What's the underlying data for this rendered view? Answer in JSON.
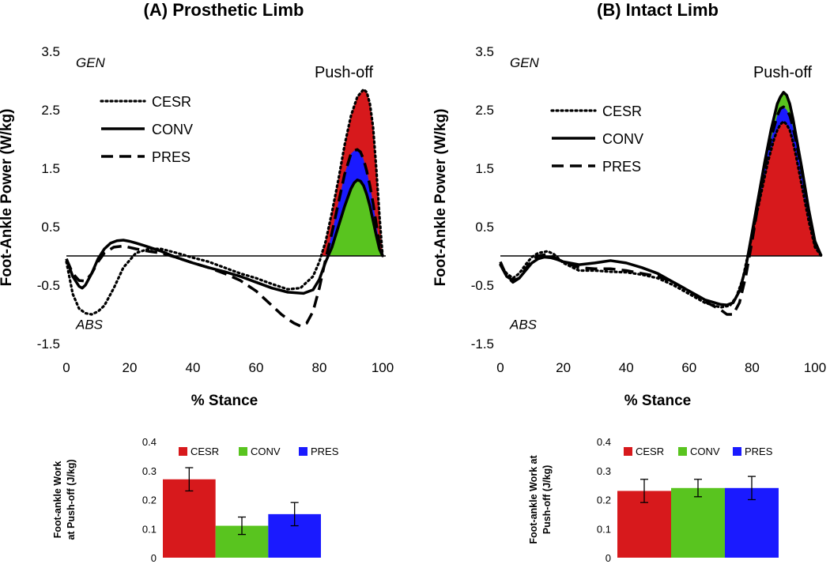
{
  "chart_data": [
    {
      "type": "line",
      "title": "(A) Prosthetic Limb",
      "ylabel": "Foot-Ankle Power (W/kg)",
      "xlabel": "% Stance",
      "xlim": [
        0,
        100
      ],
      "ylim": [
        -1.5,
        3.5
      ],
      "xticks": [
        "0",
        "20",
        "40",
        "60",
        "80",
        "100"
      ],
      "yticks": [
        "3.5",
        "2.5",
        "1.5",
        "0.5",
        "-0.5",
        "-1.5"
      ],
      "annotations": {
        "gen": "GEN",
        "abs": "ABS",
        "pushoff": "Push-off"
      },
      "series": [
        {
          "name": "CESR",
          "style": "dotted",
          "fill": "#d7191c",
          "x": [
            0,
            2,
            4,
            6,
            8,
            10,
            12,
            15,
            18,
            22,
            26,
            30,
            35,
            40,
            45,
            50,
            55,
            60,
            65,
            70,
            74,
            78,
            80,
            82,
            84,
            86,
            88,
            90,
            92,
            94,
            95,
            96,
            97,
            98,
            99,
            100
          ],
          "y": [
            -0.1,
            -0.65,
            -0.9,
            -0.98,
            -1.0,
            -0.95,
            -0.85,
            -0.55,
            -0.2,
            0.05,
            0.12,
            0.12,
            0.05,
            -0.03,
            -0.1,
            -0.2,
            -0.3,
            -0.38,
            -0.48,
            -0.57,
            -0.55,
            -0.35,
            -0.1,
            0.25,
            0.75,
            1.3,
            1.9,
            2.4,
            2.72,
            2.85,
            2.8,
            2.6,
            2.2,
            1.5,
            0.7,
            0.0
          ]
        },
        {
          "name": "CONV",
          "style": "solid",
          "fill": "#59c41f",
          "x": [
            0,
            2,
            4,
            5,
            6,
            8,
            10,
            12,
            14,
            16,
            18,
            20,
            22,
            25,
            30,
            35,
            40,
            45,
            50,
            55,
            60,
            65,
            70,
            75,
            78,
            80,
            82,
            84,
            86,
            88,
            90,
            91,
            92,
            93,
            94,
            95,
            96,
            97,
            98,
            99,
            100
          ],
          "y": [
            -0.05,
            -0.35,
            -0.52,
            -0.55,
            -0.5,
            -0.3,
            -0.05,
            0.12,
            0.22,
            0.26,
            0.27,
            0.25,
            0.22,
            0.17,
            0.08,
            -0.03,
            -0.12,
            -0.2,
            -0.27,
            -0.35,
            -0.45,
            -0.55,
            -0.62,
            -0.64,
            -0.58,
            -0.4,
            -0.1,
            0.15,
            0.5,
            0.85,
            1.15,
            1.25,
            1.3,
            1.28,
            1.2,
            1.05,
            0.85,
            0.6,
            0.35,
            0.12,
            0.0
          ]
        },
        {
          "name": "PRES",
          "style": "dashed",
          "fill": "#1a1aff",
          "x": [
            0,
            2,
            4,
            6,
            8,
            10,
            12,
            15,
            18,
            22,
            26,
            30,
            35,
            40,
            45,
            50,
            55,
            60,
            65,
            68,
            70,
            72,
            74,
            76,
            78,
            80,
            82,
            84,
            86,
            88,
            90,
            91,
            92,
            93,
            94,
            95,
            96,
            97,
            98,
            99,
            100
          ],
          "y": [
            -0.05,
            -0.3,
            -0.42,
            -0.43,
            -0.3,
            -0.1,
            0.05,
            0.15,
            0.17,
            0.12,
            0.08,
            0.05,
            -0.03,
            -0.12,
            -0.2,
            -0.3,
            -0.42,
            -0.6,
            -0.85,
            -1.0,
            -1.08,
            -1.15,
            -1.2,
            -1.15,
            -0.95,
            -0.55,
            -0.05,
            0.4,
            0.9,
            1.4,
            1.75,
            1.8,
            1.82,
            1.78,
            1.65,
            1.45,
            1.2,
            0.9,
            0.55,
            0.2,
            0.0
          ]
        }
      ]
    },
    {
      "type": "line",
      "title": "(B) Intact Limb",
      "ylabel": "Foot-Ankle Power (W/kg)",
      "xlabel": "% Stance",
      "xlim": [
        0,
        100
      ],
      "ylim": [
        -1.5,
        3.5
      ],
      "xticks": [
        "0",
        "20",
        "40",
        "60",
        "80",
        "100"
      ],
      "yticks": [
        "3.5",
        "2.5",
        "1.5",
        "0.5",
        "-0.5",
        "-1.5"
      ],
      "annotations": {
        "gen": "GEN",
        "abs": "ABS",
        "pushoff": "Push-off"
      },
      "series": [
        {
          "name": "CESR",
          "style": "dotted",
          "fill": "#d7191c",
          "x": [
            0,
            2,
            4,
            6,
            8,
            10,
            12,
            14,
            15,
            17,
            20,
            25,
            30,
            35,
            40,
            45,
            50,
            55,
            60,
            65,
            70,
            73,
            75,
            77,
            79,
            81,
            83,
            85,
            87,
            88,
            89,
            90,
            91,
            92,
            93,
            94,
            96,
            98,
            100,
            102
          ],
          "y": [
            -0.15,
            -0.3,
            -0.38,
            -0.3,
            -0.15,
            -0.02,
            0.05,
            0.07,
            0.08,
            0.03,
            -0.12,
            -0.25,
            -0.25,
            -0.27,
            -0.28,
            -0.32,
            -0.38,
            -0.5,
            -0.65,
            -0.8,
            -0.88,
            -0.85,
            -0.7,
            -0.4,
            0.1,
            0.6,
            1.1,
            1.6,
            2.0,
            2.15,
            2.25,
            2.3,
            2.25,
            2.15,
            1.95,
            1.7,
            1.15,
            0.6,
            0.15,
            0.0
          ]
        },
        {
          "name": "CONV",
          "style": "solid",
          "fill": "#59c41f",
          "x": [
            0,
            2,
            4,
            6,
            8,
            10,
            12,
            14,
            16,
            18,
            20,
            25,
            30,
            35,
            40,
            45,
            50,
            55,
            60,
            65,
            70,
            72,
            74,
            76,
            78,
            80,
            82,
            84,
            86,
            88,
            89,
            90,
            91,
            92,
            93,
            94,
            96,
            98,
            100,
            102
          ],
          "y": [
            -0.1,
            -0.35,
            -0.42,
            -0.38,
            -0.25,
            -0.12,
            -0.05,
            -0.02,
            -0.03,
            -0.06,
            -0.1,
            -0.15,
            -0.12,
            -0.08,
            -0.12,
            -0.2,
            -0.3,
            -0.45,
            -0.6,
            -0.75,
            -0.83,
            -0.84,
            -0.8,
            -0.6,
            -0.2,
            0.4,
            1.0,
            1.6,
            2.15,
            2.6,
            2.72,
            2.8,
            2.75,
            2.6,
            2.35,
            2.05,
            1.45,
            0.8,
            0.25,
            0.0
          ]
        },
        {
          "name": "PRES",
          "style": "dashed",
          "fill": "#1a1aff",
          "x": [
            0,
            2,
            4,
            6,
            8,
            10,
            12,
            14,
            15,
            16,
            18,
            20,
            25,
            30,
            35,
            40,
            45,
            50,
            55,
            60,
            65,
            70,
            72,
            74,
            76,
            78,
            80,
            82,
            84,
            86,
            88,
            89,
            90,
            91,
            92,
            93,
            94,
            96,
            98,
            100,
            102
          ],
          "y": [
            -0.15,
            -0.35,
            -0.45,
            -0.38,
            -0.22,
            -0.08,
            0.0,
            0.02,
            0.03,
            0.0,
            -0.05,
            -0.1,
            -0.2,
            -0.22,
            -0.22,
            -0.25,
            -0.3,
            -0.35,
            -0.45,
            -0.6,
            -0.78,
            -0.92,
            -1.0,
            -1.0,
            -0.8,
            -0.35,
            0.25,
            0.9,
            1.5,
            2.0,
            2.4,
            2.52,
            2.55,
            2.5,
            2.4,
            2.2,
            1.95,
            1.4,
            0.75,
            0.2,
            0.0
          ]
        }
      ]
    },
    {
      "type": "bar",
      "title": "",
      "ylabel": "Foot-ankle Work at Push-off (J/kg)",
      "ylabel_lines": [
        "Foot-ankle Work",
        "at Push-off (J/kg)"
      ],
      "ylim": [
        0,
        0.4
      ],
      "yticks": [
        "0.4",
        "0.3",
        "0.2",
        "0.1",
        "0"
      ],
      "categories": [
        "CESR",
        "CONV",
        "PRES"
      ],
      "values": [
        0.27,
        0.11,
        0.15
      ],
      "errors": [
        0.04,
        0.03,
        0.04
      ],
      "colors": [
        "#d7191c",
        "#59c41f",
        "#1a1aff"
      ]
    },
    {
      "type": "bar",
      "title": "",
      "ylabel": "Foot-ankle Work at Push-off (J/kg)",
      "ylabel_lines": [
        "Foot-ankle Work at",
        "Push-off (J/kg)"
      ],
      "ylim": [
        0,
        0.4
      ],
      "yticks": [
        "0.4",
        "0.3",
        "0.2",
        "0.1",
        "0"
      ],
      "categories": [
        "CESR",
        "CONV",
        "PRES"
      ],
      "values": [
        0.23,
        0.24,
        0.24
      ],
      "errors": [
        0.04,
        0.03,
        0.04
      ],
      "colors": [
        "#d7191c",
        "#59c41f",
        "#1a1aff"
      ]
    }
  ]
}
